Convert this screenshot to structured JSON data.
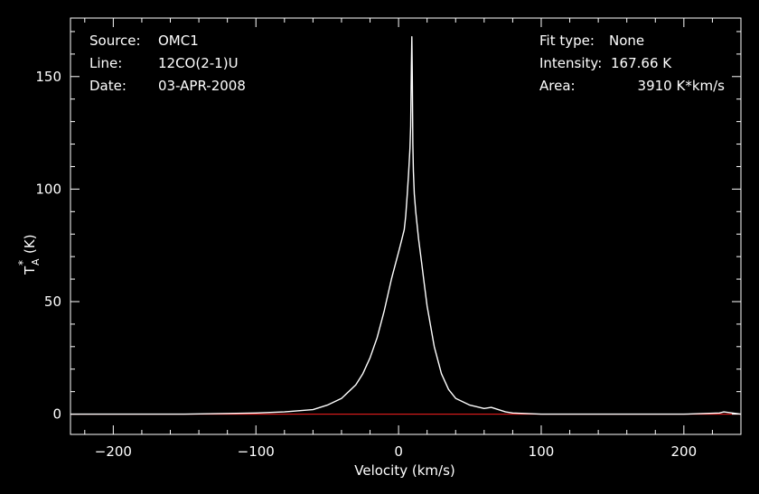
{
  "info": {
    "source_label": "Source:",
    "source_value": "OMC1",
    "line_label": "Line:",
    "line_value": "12CO(2-1)U",
    "date_label": "Date:",
    "date_value": "03-APR-2008",
    "fit_label": "Fit type:",
    "fit_value": "None",
    "intensity_label": "Intensity:",
    "intensity_value": "167.66 K",
    "area_label": "Area:",
    "area_value": "3910 K*km/s"
  },
  "chart_data": {
    "type": "line",
    "title": "",
    "xlabel": "Velocity (km/s)",
    "ylabel": "T",
    "ylabel_sub": "A",
    "ylabel_sup": "*",
    "ylabel_unit": "(K)",
    "xlim": [
      -230,
      240
    ],
    "ylim": [
      -9,
      176
    ],
    "xticks_major": [
      -200,
      -100,
      0,
      100,
      200
    ],
    "yticks_major": [
      0,
      50,
      100,
      150
    ],
    "grid": false,
    "colors": {
      "background": "#000000",
      "axes": "#ffffff",
      "spectrum": "#ffffff",
      "baseline": "#ff2020"
    },
    "baseline": {
      "y": 0
    },
    "series": [
      {
        "x": [
          -230,
          -200,
          -150,
          -100,
          -80,
          -60,
          -50,
          -40,
          -30,
          -25,
          -20,
          -15,
          -10,
          -5,
          0,
          2,
          4,
          5,
          6,
          7,
          8,
          8.5,
          9,
          9.3,
          9.6,
          10,
          10.4,
          11,
          12,
          14,
          16,
          18,
          20,
          25,
          30,
          35,
          40,
          50,
          60,
          65,
          70,
          75,
          80,
          100,
          150,
          200,
          225,
          228,
          240
        ],
        "y": [
          0,
          0,
          0,
          0.5,
          1,
          2,
          4,
          7,
          13,
          18,
          25,
          34,
          46,
          60,
          72,
          77,
          82,
          88,
          97,
          107,
          118,
          128,
          155,
          167.7,
          150,
          120,
          108,
          98,
          90,
          78,
          68,
          58,
          48,
          30,
          18,
          11,
          7,
          4,
          2.5,
          3,
          2,
          1,
          0.5,
          0,
          0,
          0,
          0.5,
          1,
          0
        ]
      }
    ]
  }
}
